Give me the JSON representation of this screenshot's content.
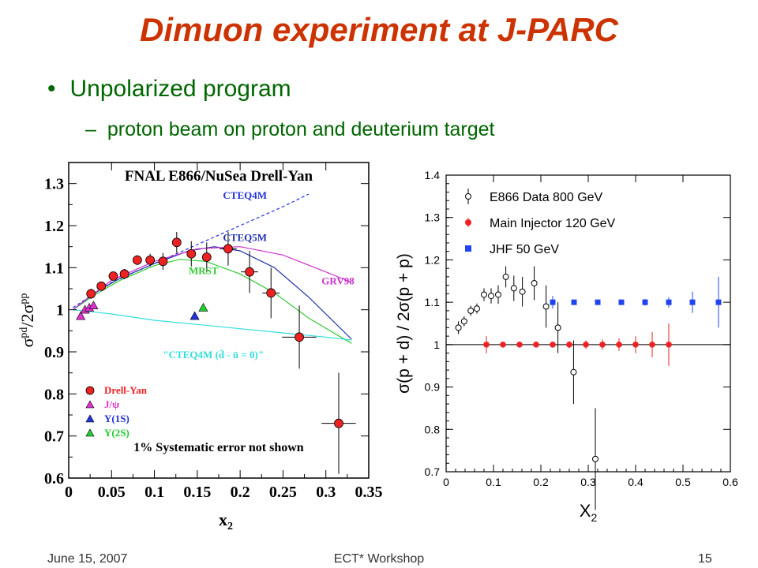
{
  "slide": {
    "title": "Dimuon experiment at J-PARC",
    "bullet": "Unpolarized program",
    "sub_bullet": "proton beam on proton and deuterium target",
    "footer_left": "June 15, 2007",
    "footer_center": "ECT* Workshop",
    "footer_right": "15",
    "title_color": "#cc3300",
    "text_color": "#006600"
  },
  "chart_data": [
    {
      "type": "scatter",
      "title": "FNAL E866/NuSea Drell-Yan",
      "xlabel": "x2",
      "ylabel": "σpd/2σpp",
      "xlim": [
        0,
        0.35
      ],
      "ylim": [
        0.6,
        1.35
      ],
      "xticks": [
        "0",
        "0.05",
        "0.1",
        "0.15",
        "0.2",
        "0.25",
        "0.3",
        "0.35"
      ],
      "yticks": [
        "0.6",
        "0.7",
        "0.8",
        "0.9",
        "1",
        "1.1",
        "1.2",
        "1.3"
      ],
      "note": "1% Systematic error not shown",
      "series": [
        {
          "name": "Drell-Yan",
          "marker": "circle",
          "color": "#ee2222",
          "points": [
            {
              "x": 0.026,
              "y": 1.038,
              "xerr": 0.0,
              "yerr": 0.012
            },
            {
              "x": 0.038,
              "y": 1.056,
              "xerr": 0.0,
              "yerr": 0.01
            },
            {
              "x": 0.052,
              "y": 1.08,
              "xerr": 0.0,
              "yerr": 0.01
            },
            {
              "x": 0.065,
              "y": 1.085,
              "xerr": 0.0,
              "yerr": 0.012
            },
            {
              "x": 0.08,
              "y": 1.118,
              "xerr": 0.0,
              "yerr": 0.012
            },
            {
              "x": 0.095,
              "y": 1.118,
              "xerr": 0.0,
              "yerr": 0.015
            },
            {
              "x": 0.11,
              "y": 1.115,
              "xerr": 0.0,
              "yerr": 0.02
            },
            {
              "x": 0.126,
              "y": 1.16,
              "xerr": 0.0,
              "yerr": 0.025
            },
            {
              "x": 0.143,
              "y": 1.133,
              "xerr": 0.0,
              "yerr": 0.03
            },
            {
              "x": 0.161,
              "y": 1.125,
              "xerr": 0.0,
              "yerr": 0.035
            },
            {
              "x": 0.186,
              "y": 1.145,
              "xerr": 0.01,
              "yerr": 0.04
            },
            {
              "x": 0.211,
              "y": 1.09,
              "xerr": 0.01,
              "yerr": 0.05
            },
            {
              "x": 0.236,
              "y": 1.04,
              "xerr": 0.01,
              "yerr": 0.06
            },
            {
              "x": 0.269,
              "y": 0.935,
              "xerr": 0.02,
              "yerr": 0.075
            },
            {
              "x": 0.315,
              "y": 0.73,
              "xerr": 0.02,
              "yerr": 0.12
            }
          ]
        },
        {
          "name": "J/ψ",
          "marker": "triangle",
          "color": "#dd33cc",
          "points": [
            {
              "x": 0.014,
              "y": 0.985
            },
            {
              "x": 0.019,
              "y": 1.0
            },
            {
              "x": 0.024,
              "y": 1.005
            },
            {
              "x": 0.029,
              "y": 1.01
            }
          ]
        },
        {
          "name": "Υ(1S)",
          "marker": "triangle",
          "color": "#2233dd",
          "points": [
            {
              "x": 0.147,
              "y": 0.985
            }
          ]
        },
        {
          "name": "Υ(2S)",
          "marker": "triangle",
          "color": "#22cc33",
          "points": [
            {
              "x": 0.157,
              "y": 1.005
            }
          ]
        }
      ],
      "curves": [
        {
          "name": "CTEQ4M",
          "color": "#2233dd",
          "dashed": true,
          "points": [
            [
              0.005,
              1.005
            ],
            [
              0.05,
              1.065
            ],
            [
              0.1,
              1.11
            ],
            [
              0.15,
              1.155
            ],
            [
              0.2,
              1.2
            ],
            [
              0.25,
              1.245
            ],
            [
              0.28,
              1.275
            ]
          ]
        },
        {
          "name": "CTEQ5M",
          "color": "#2233aa",
          "dashed": false,
          "points": [
            [
              0.005,
              1.0
            ],
            [
              0.03,
              1.04
            ],
            [
              0.06,
              1.075
            ],
            [
              0.1,
              1.11
            ],
            [
              0.14,
              1.14
            ],
            [
              0.17,
              1.15
            ],
            [
              0.2,
              1.14
            ],
            [
              0.24,
              1.1
            ],
            [
              0.28,
              1.03
            ],
            [
              0.33,
              0.93
            ]
          ]
        },
        {
          "name": "MRST",
          "color": "#33cc33",
          "dashed": false,
          "points": [
            [
              0.005,
              1.0
            ],
            [
              0.03,
              1.035
            ],
            [
              0.06,
              1.07
            ],
            [
              0.1,
              1.105
            ],
            [
              0.13,
              1.12
            ],
            [
              0.16,
              1.115
            ],
            [
              0.2,
              1.085
            ],
            [
              0.24,
              1.04
            ],
            [
              0.28,
              0.98
            ],
            [
              0.33,
              0.92
            ]
          ]
        },
        {
          "name": "GRV98",
          "color": "#cc33cc",
          "dashed": false,
          "points": [
            [
              0.005,
              1.0
            ],
            [
              0.05,
              1.07
            ],
            [
              0.1,
              1.115
            ],
            [
              0.15,
              1.145
            ],
            [
              0.2,
              1.15
            ],
            [
              0.25,
              1.13
            ],
            [
              0.3,
              1.09
            ],
            [
              0.33,
              1.065
            ]
          ]
        },
        {
          "name": "\"CTEQ4M (d̄ - ū = 0)\"",
          "color": "#33dddd",
          "dashed": false,
          "points": [
            [
              0.005,
              1.0
            ],
            [
              0.05,
              0.99
            ],
            [
              0.1,
              0.975
            ],
            [
              0.15,
              0.965
            ],
            [
              0.2,
              0.955
            ],
            [
              0.25,
              0.945
            ],
            [
              0.3,
              0.935
            ],
            [
              0.33,
              0.928
            ]
          ]
        }
      ]
    },
    {
      "type": "scatter",
      "title": "",
      "xlabel": "X2",
      "ylabel": "σ(p + d) / 2σ(p + p)",
      "xlim": [
        0,
        0.6
      ],
      "ylim": [
        0.7,
        1.4
      ],
      "xticks": [
        "0",
        "0.1",
        "0.2",
        "0.3",
        "0.4",
        "0.5",
        "0.6"
      ],
      "yticks": [
        "0.7",
        "0.8",
        "0.9",
        "1",
        "1.1",
        "1.2",
        "1.3",
        "1.4"
      ],
      "reference_line": 1.0,
      "series": [
        {
          "name": "E866 Data 800 GeV",
          "marker": "open-circle",
          "color": "#000000",
          "points": [
            {
              "x": 0.026,
              "y": 1.04,
              "yerr": 0.015
            },
            {
              "x": 0.038,
              "y": 1.055,
              "yerr": 0.012
            },
            {
              "x": 0.052,
              "y": 1.08,
              "yerr": 0.012
            },
            {
              "x": 0.065,
              "y": 1.085,
              "yerr": 0.012
            },
            {
              "x": 0.08,
              "y": 1.118,
              "yerr": 0.015
            },
            {
              "x": 0.095,
              "y": 1.115,
              "yerr": 0.018
            },
            {
              "x": 0.11,
              "y": 1.118,
              "yerr": 0.022
            },
            {
              "x": 0.126,
              "y": 1.16,
              "yerr": 0.025
            },
            {
              "x": 0.143,
              "y": 1.133,
              "yerr": 0.03
            },
            {
              "x": 0.161,
              "y": 1.125,
              "yerr": 0.035
            },
            {
              "x": 0.186,
              "y": 1.145,
              "yerr": 0.04
            },
            {
              "x": 0.211,
              "y": 1.09,
              "yerr": 0.05
            },
            {
              "x": 0.236,
              "y": 1.04,
              "yerr": 0.06
            },
            {
              "x": 0.269,
              "y": 0.935,
              "yerr": 0.075
            },
            {
              "x": 0.315,
              "y": 0.73,
              "yerr": 0.12
            }
          ]
        },
        {
          "name": "Main Injector 120 GeV",
          "marker": "circle",
          "color": "#ee2222",
          "points": [
            {
              "x": 0.085,
              "y": 1.0,
              "yerr": 0.02
            },
            {
              "x": 0.12,
              "y": 1.0,
              "yerr": 0.005
            },
            {
              "x": 0.155,
              "y": 1.0,
              "yerr": 0.005
            },
            {
              "x": 0.19,
              "y": 1.0,
              "yerr": 0.005
            },
            {
              "x": 0.225,
              "y": 1.0,
              "yerr": 0.005
            },
            {
              "x": 0.26,
              "y": 1.0,
              "yerr": 0.008
            },
            {
              "x": 0.295,
              "y": 1.0,
              "yerr": 0.01
            },
            {
              "x": 0.33,
              "y": 1.0,
              "yerr": 0.012
            },
            {
              "x": 0.365,
              "y": 1.0,
              "yerr": 0.015
            },
            {
              "x": 0.4,
              "y": 1.0,
              "yerr": 0.02
            },
            {
              "x": 0.435,
              "y": 1.0,
              "yerr": 0.03
            },
            {
              "x": 0.47,
              "y": 1.0,
              "yerr": 0.05
            }
          ]
        },
        {
          "name": "JHF 50 GeV",
          "marker": "square",
          "color": "#2244ee",
          "points": [
            {
              "x": 0.225,
              "y": 1.1,
              "yerr": 0.015
            },
            {
              "x": 0.27,
              "y": 1.1,
              "yerr": 0.005
            },
            {
              "x": 0.32,
              "y": 1.1,
              "yerr": 0.005
            },
            {
              "x": 0.37,
              "y": 1.1,
              "yerr": 0.005
            },
            {
              "x": 0.42,
              "y": 1.1,
              "yerr": 0.008
            },
            {
              "x": 0.47,
              "y": 1.1,
              "yerr": 0.012
            },
            {
              "x": 0.52,
              "y": 1.1,
              "yerr": 0.025
            },
            {
              "x": 0.575,
              "y": 1.1,
              "yerr": 0.06
            }
          ]
        }
      ]
    }
  ]
}
